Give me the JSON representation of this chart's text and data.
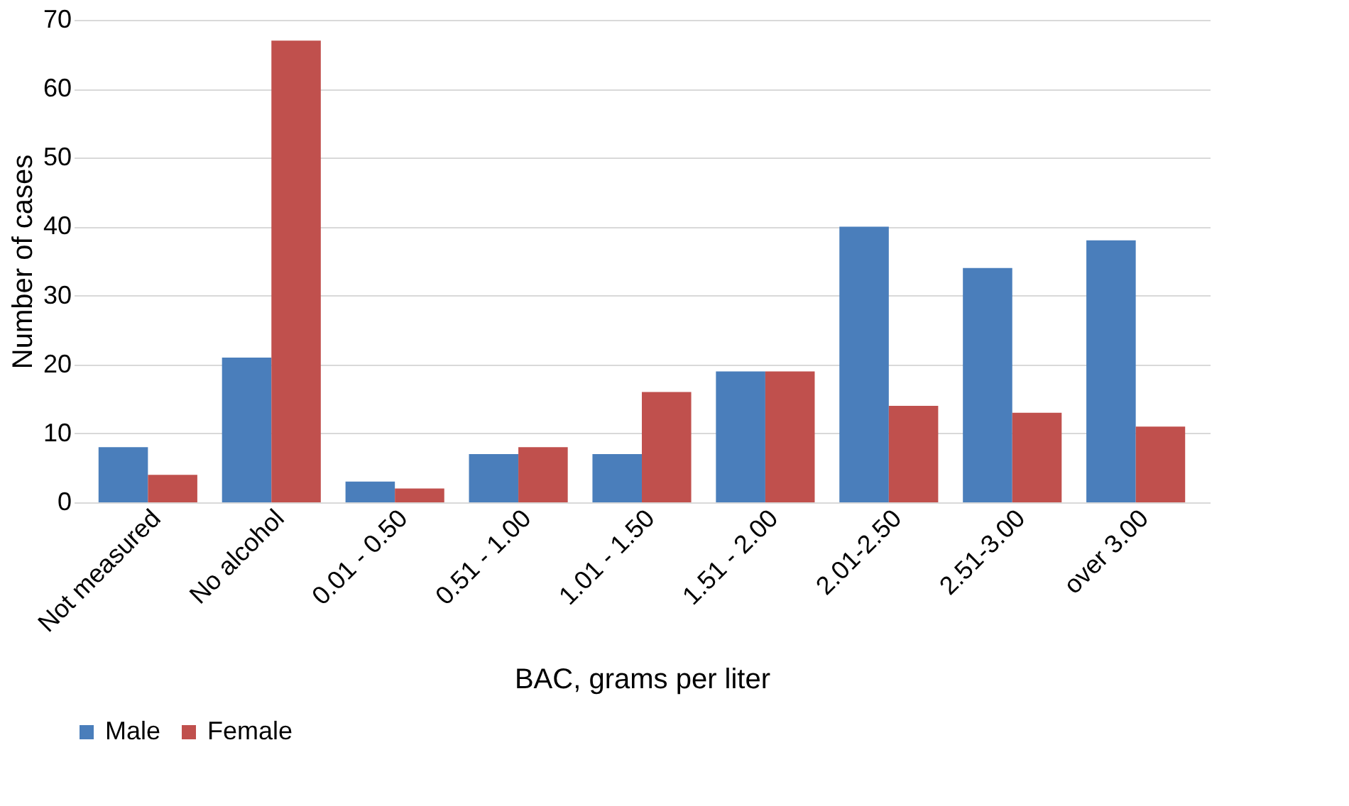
{
  "chart_data": {
    "type": "bar",
    "xlabel": "BAC, grams per liter",
    "ylabel": "Number of cases",
    "categories": [
      "Not measured",
      "No alcohol",
      "0.01 - 0.50",
      "0.51 - 1.00",
      "1.01 - 1.50",
      "1.51 - 2.00",
      "2.01-2.50",
      "2.51-3.00",
      "over 3.00"
    ],
    "series": [
      {
        "name": "Male",
        "color": "#4a7ebb",
        "values": [
          8,
          21,
          3,
          7,
          7,
          19,
          40,
          34,
          38
        ]
      },
      {
        "name": "Female",
        "color": "#c0504d",
        "values": [
          4,
          67,
          2,
          8,
          16,
          19,
          14,
          13,
          11
        ]
      }
    ],
    "ylim": [
      0,
      70
    ],
    "yticks": [
      0,
      10,
      20,
      30,
      40,
      50,
      60,
      70
    ],
    "grid": "y",
    "legend": "bottom"
  }
}
